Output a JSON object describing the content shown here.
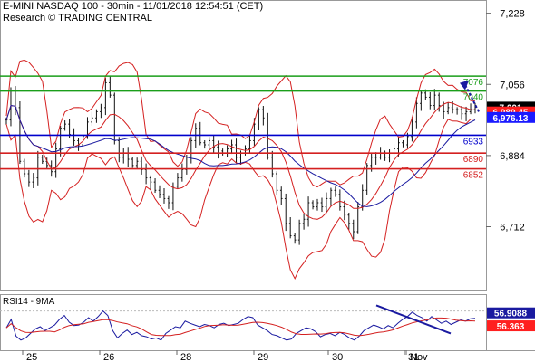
{
  "header": {
    "title": "E-MINI NASDAQ 100 - 30min - 11/01/2018 12:54:51 (CET)",
    "subtitle": "Research © TRADING CENTRAL"
  },
  "chart_data": {
    "type": "candlestick",
    "price_axis": {
      "range": [
        6560,
        7260
      ],
      "ticks": [
        7228,
        7056,
        6884,
        6712
      ]
    },
    "x_axis": {
      "labels": [
        "25",
        "26",
        "28",
        "29",
        "30",
        "31",
        "Nov"
      ]
    },
    "levels": [
      {
        "value": 7076,
        "label": "7076",
        "color": "#1a9e1a"
      },
      {
        "value": 7040,
        "label": "7040",
        "color": "#1a9e1a"
      },
      {
        "value": 6933,
        "label": "6933",
        "color": "#0000cc"
      },
      {
        "value": 6890,
        "label": "6890",
        "color": "#d42020"
      },
      {
        "value": 6852,
        "label": "6852",
        "color": "#d42020"
      }
    ],
    "price_tags": [
      {
        "value": 7001,
        "label": "7,001",
        "bg": "#000000",
        "fg": "#ffffff"
      },
      {
        "value": 6989.4,
        "label": "6,989.45",
        "bg": "#ff2020",
        "fg": "#ffffff"
      },
      {
        "value": 6976.1,
        "label": "6,976.13",
        "bg": "#1a1aff",
        "fg": "#ffffff"
      }
    ],
    "price_series": [
      6970,
      7040,
      7000,
      6870,
      6840,
      6820,
      6830,
      6880,
      6870,
      6860,
      6845,
      6900,
      6950,
      6960,
      6935,
      6920,
      6910,
      6930,
      6965,
      6975,
      6990,
      7000,
      7060,
      7030,
      6920,
      6880,
      6890,
      6875,
      6860,
      6870,
      6850,
      6830,
      6820,
      6800,
      6790,
      6780,
      6770,
      6810,
      6830,
      6850,
      6880,
      6920,
      6950,
      6915,
      6910,
      6920,
      6905,
      6895,
      6890,
      6900,
      6910,
      6880,
      6890,
      6900,
      6920,
      6960,
      6995,
      6975,
      6880,
      6840,
      6800,
      6780,
      6720,
      6690,
      6680,
      6720,
      6730,
      6770,
      6760,
      6770,
      6760,
      6780,
      6800,
      6790,
      6760,
      6740,
      6720,
      6700,
      6760,
      6800,
      6860,
      6880,
      6880,
      6890,
      6880,
      6890,
      6900,
      6915,
      6910,
      6930,
      6965,
      7010,
      7035,
      7025,
      7005,
      7030,
      7005,
      6990,
      7000,
      6995,
      6995,
      6985,
      6990,
      6995,
      7005
    ],
    "rsi": {
      "name": "RSI14 - 9MA",
      "range": [
        0,
        100
      ],
      "ticks": [
        70
      ],
      "rsi_value": 56.9088,
      "ma_value": 56.363,
      "rsi_label": "56.9088",
      "ma_label": "56.363",
      "series": [
        40,
        55,
        25,
        18,
        22,
        30,
        38,
        42,
        35,
        40,
        45,
        55,
        62,
        50,
        44,
        45,
        50,
        58,
        52,
        60,
        70,
        62,
        35,
        22,
        30,
        36,
        28,
        32,
        26,
        24,
        20,
        22,
        18,
        30,
        36,
        42,
        40,
        52,
        48,
        45,
        42,
        46,
        44,
        40,
        46,
        48,
        44,
        46,
        48,
        55,
        60,
        58,
        45,
        40,
        35,
        28,
        26,
        22,
        18,
        20,
        30,
        35,
        40,
        38,
        33,
        24,
        28,
        30,
        26,
        32,
        28,
        22,
        18,
        25,
        35,
        40,
        45,
        42,
        38,
        44,
        40,
        48,
        55,
        60,
        68,
        62,
        58,
        52,
        60,
        54,
        48,
        52,
        46,
        50,
        54,
        52,
        56,
        57
      ]
    },
    "annotations": [
      {
        "type": "forecast-arrow",
        "from_price": 6990,
        "to_price": 7066,
        "color": "#1a1aa0"
      },
      {
        "type": "rsi-trendline",
        "color": "#1a1aa0"
      }
    ]
  }
}
